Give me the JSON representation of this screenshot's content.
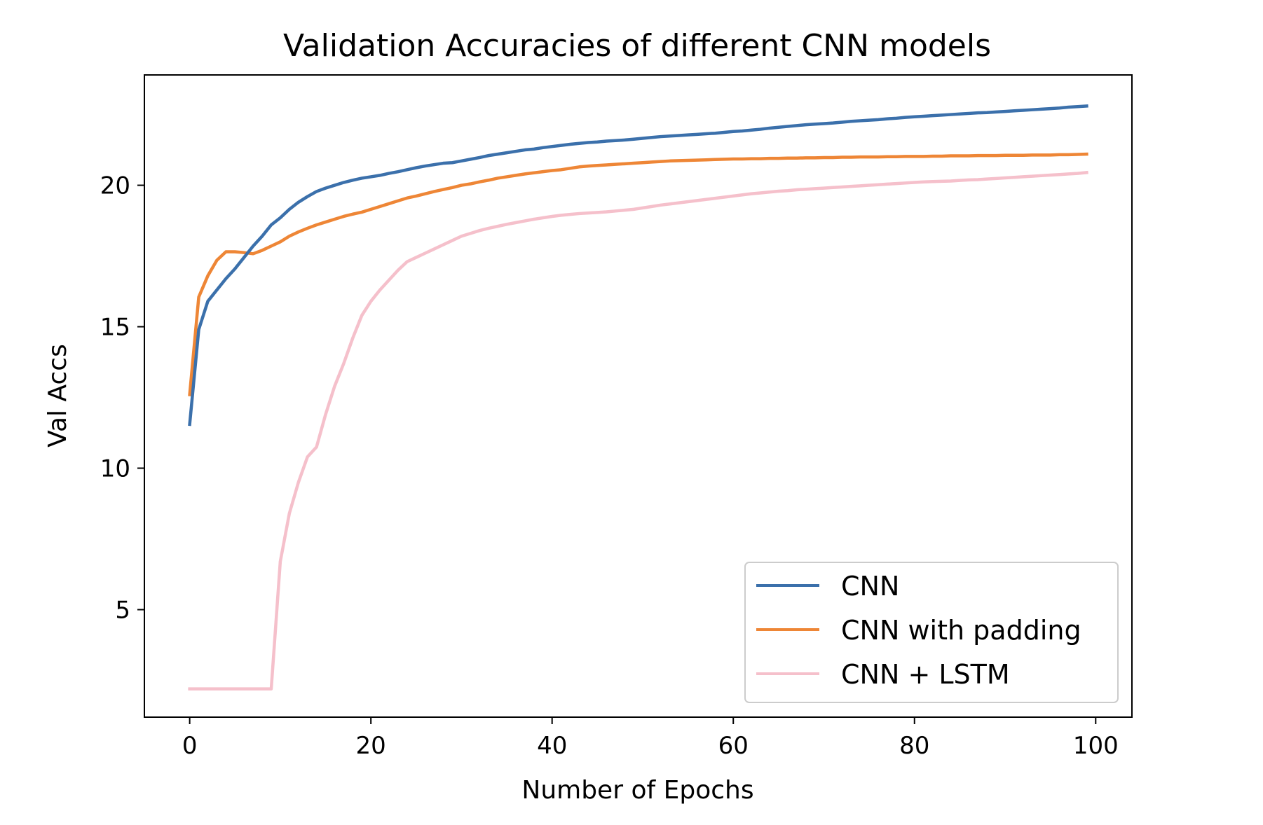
{
  "chart_data": {
    "type": "line",
    "title": "Validation Accuracies of different CNN models",
    "xlabel": "Number of Epochs",
    "ylabel": "Val Accs",
    "xlim": [
      -5,
      104
    ],
    "ylim": [
      1.2,
      23.9
    ],
    "xticks": [
      0,
      20,
      40,
      60,
      80,
      100
    ],
    "yticks": [
      5,
      10,
      15,
      20
    ],
    "xtick_labels": [
      "0",
      "20",
      "40",
      "60",
      "80",
      "100"
    ],
    "ytick_labels": [
      "5",
      "10",
      "15",
      "20"
    ],
    "grid": false,
    "legend_position": "lower-right",
    "x": [
      0,
      1,
      2,
      3,
      4,
      5,
      6,
      7,
      8,
      9,
      10,
      11,
      12,
      13,
      14,
      15,
      16,
      17,
      18,
      19,
      20,
      21,
      22,
      23,
      24,
      25,
      26,
      27,
      28,
      29,
      30,
      31,
      32,
      33,
      34,
      35,
      36,
      37,
      38,
      39,
      40,
      41,
      42,
      43,
      44,
      45,
      46,
      47,
      48,
      49,
      50,
      51,
      52,
      53,
      54,
      55,
      56,
      57,
      58,
      59,
      60,
      61,
      62,
      63,
      64,
      65,
      66,
      67,
      68,
      69,
      70,
      71,
      72,
      73,
      74,
      75,
      76,
      77,
      78,
      79,
      80,
      81,
      82,
      83,
      84,
      85,
      86,
      87,
      88,
      89,
      90,
      91,
      92,
      93,
      94,
      95,
      96,
      97,
      98,
      99
    ],
    "series": [
      {
        "name": "CNN",
        "color": "#3b70ab",
        "values": [
          11.55,
          14.9,
          15.9,
          16.3,
          16.7,
          17.05,
          17.45,
          17.85,
          18.2,
          18.6,
          18.85,
          19.15,
          19.4,
          19.6,
          19.78,
          19.9,
          20.0,
          20.1,
          20.18,
          20.25,
          20.3,
          20.35,
          20.42,
          20.48,
          20.55,
          20.62,
          20.68,
          20.73,
          20.78,
          20.8,
          20.86,
          20.92,
          20.98,
          21.05,
          21.1,
          21.15,
          21.2,
          21.25,
          21.28,
          21.33,
          21.37,
          21.41,
          21.45,
          21.48,
          21.51,
          21.53,
          21.56,
          21.58,
          21.6,
          21.63,
          21.66,
          21.69,
          21.72,
          21.74,
          21.76,
          21.78,
          21.8,
          21.82,
          21.84,
          21.87,
          21.9,
          21.92,
          21.95,
          21.98,
          22.02,
          22.05,
          22.08,
          22.11,
          22.14,
          22.16,
          22.18,
          22.2,
          22.23,
          22.26,
          22.28,
          22.3,
          22.32,
          22.35,
          22.37,
          22.4,
          22.42,
          22.44,
          22.46,
          22.48,
          22.5,
          22.52,
          22.54,
          22.56,
          22.57,
          22.59,
          22.61,
          22.63,
          22.65,
          22.67,
          22.69,
          22.71,
          22.73,
          22.76,
          22.78,
          22.8
        ]
      },
      {
        "name": "CNN with padding",
        "color": "#ee8636",
        "values": [
          12.6,
          16.05,
          16.8,
          17.35,
          17.65,
          17.65,
          17.62,
          17.58,
          17.7,
          17.85,
          18.0,
          18.2,
          18.35,
          18.48,
          18.6,
          18.7,
          18.8,
          18.9,
          18.98,
          19.05,
          19.15,
          19.25,
          19.35,
          19.45,
          19.55,
          19.62,
          19.7,
          19.78,
          19.85,
          19.92,
          20.0,
          20.05,
          20.12,
          20.18,
          20.25,
          20.3,
          20.35,
          20.4,
          20.44,
          20.48,
          20.52,
          20.55,
          20.6,
          20.65,
          20.68,
          20.7,
          20.72,
          20.74,
          20.76,
          20.78,
          20.8,
          20.82,
          20.84,
          20.86,
          20.87,
          20.88,
          20.89,
          20.9,
          20.91,
          20.92,
          20.93,
          20.93,
          20.94,
          20.94,
          20.95,
          20.95,
          20.96,
          20.96,
          20.97,
          20.97,
          20.98,
          20.98,
          20.99,
          20.99,
          21.0,
          21.0,
          21.0,
          21.01,
          21.01,
          21.02,
          21.02,
          21.02,
          21.03,
          21.03,
          21.04,
          21.04,
          21.04,
          21.05,
          21.05,
          21.05,
          21.06,
          21.06,
          21.06,
          21.07,
          21.07,
          21.07,
          21.08,
          21.08,
          21.09,
          21.1
        ]
      },
      {
        "name": "CNN + LSTM",
        "color": "#f5c0cb",
        "values": [
          2.2,
          2.2,
          2.2,
          2.2,
          2.2,
          2.2,
          2.2,
          2.2,
          2.2,
          2.2,
          6.7,
          8.4,
          9.5,
          10.4,
          10.75,
          11.9,
          12.9,
          13.7,
          14.6,
          15.4,
          15.9,
          16.3,
          16.65,
          17.0,
          17.3,
          17.45,
          17.6,
          17.75,
          17.9,
          18.05,
          18.2,
          18.3,
          18.4,
          18.48,
          18.55,
          18.62,
          18.68,
          18.74,
          18.8,
          18.85,
          18.9,
          18.94,
          18.97,
          19.0,
          19.02,
          19.04,
          19.06,
          19.09,
          19.12,
          19.15,
          19.2,
          19.25,
          19.3,
          19.34,
          19.38,
          19.42,
          19.46,
          19.5,
          19.54,
          19.58,
          19.62,
          19.66,
          19.7,
          19.73,
          19.76,
          19.79,
          19.81,
          19.84,
          19.86,
          19.88,
          19.9,
          19.92,
          19.94,
          19.96,
          19.98,
          20.0,
          20.02,
          20.04,
          20.06,
          20.08,
          20.1,
          20.12,
          20.13,
          20.14,
          20.15,
          20.17,
          20.19,
          20.2,
          20.22,
          20.24,
          20.26,
          20.28,
          20.3,
          20.32,
          20.34,
          20.36,
          20.38,
          20.4,
          20.42,
          20.45
        ]
      }
    ]
  }
}
